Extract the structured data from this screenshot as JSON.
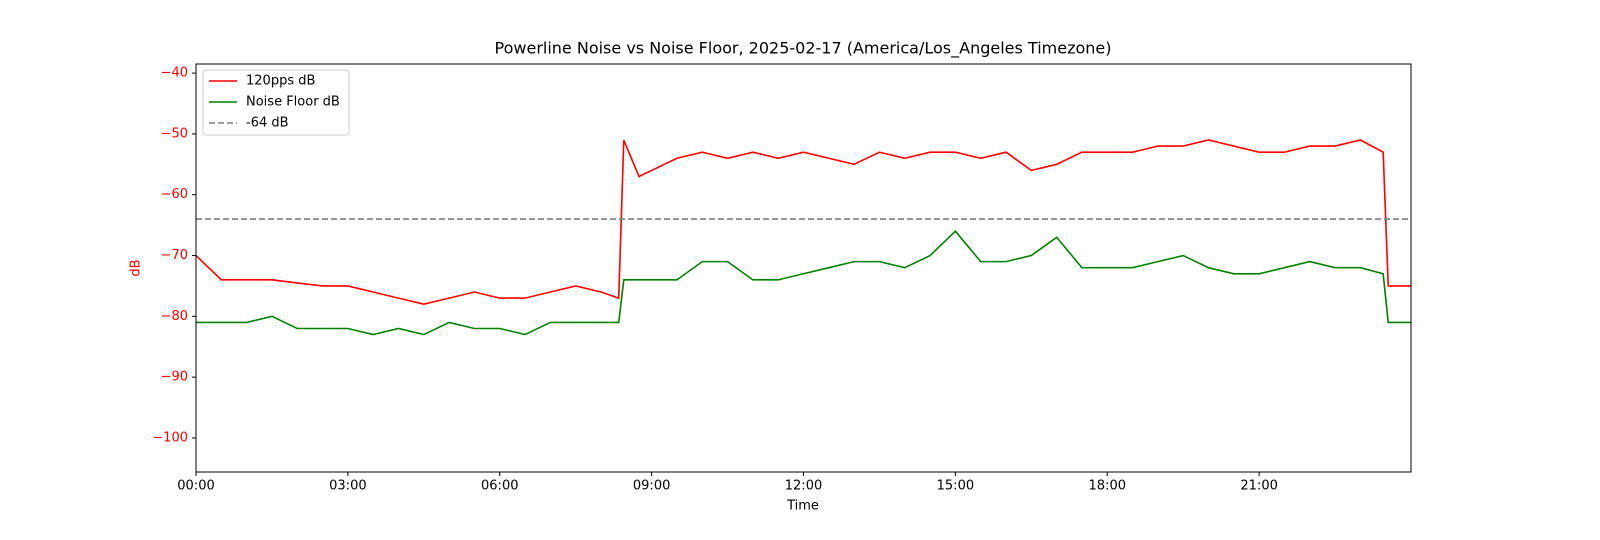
{
  "chart_data": {
    "type": "line",
    "title": "Powerline Noise vs Noise Floor, 2025-02-17 (America/Los_Angeles Timezone)",
    "x_label": "Time",
    "y_label": "dB",
    "y_axis_color": "#ff0000",
    "x": [
      0,
      0.5,
      1,
      1.5,
      2,
      2.5,
      3,
      3.5,
      4,
      4.5,
      5,
      5.5,
      6,
      6.5,
      7,
      7.5,
      8,
      8.35,
      8.45,
      8.75,
      9,
      9.5,
      10,
      10.5,
      11,
      11.5,
      12,
      12.5,
      13,
      13.5,
      14,
      14.5,
      15,
      15.5,
      16,
      16.5,
      17,
      17.5,
      18,
      18.5,
      19,
      19.5,
      20,
      20.5,
      21,
      21.5,
      22,
      22.5,
      23,
      23.45,
      23.55,
      24
    ],
    "series": [
      {
        "name": "120pps dB",
        "color": "#ff0000",
        "values": [
          -70,
          -74,
          -74,
          -74,
          -74.5,
          -75,
          -75,
          -76,
          -77,
          -78,
          -77,
          -76,
          -77,
          -77,
          -76,
          -75,
          -76,
          -77,
          -51,
          -57,
          -56,
          -54,
          -53,
          -54,
          -53,
          -54,
          -53,
          -54,
          -55,
          -53,
          -54,
          -53,
          -53,
          -54,
          -53,
          -56,
          -55,
          -53,
          -53,
          -53,
          -52,
          -52,
          -51,
          -52,
          -53,
          -53,
          -52,
          -52,
          -51,
          -53,
          -75,
          -75
        ]
      },
      {
        "name": "Noise Floor dB",
        "color": "#008000",
        "values": [
          -81,
          -81,
          -81,
          -80,
          -82,
          -82,
          -82,
          -83,
          -82,
          -83,
          -81,
          -82,
          -82,
          -83,
          -81,
          -81,
          -81,
          -81,
          -74,
          -74,
          -74,
          -74,
          -71,
          -71,
          -74,
          -74,
          -73,
          -72,
          -71,
          -71,
          -72,
          -70,
          -66,
          -71,
          -71,
          -70,
          -67,
          -72,
          -72,
          -72,
          -71,
          -70,
          -72,
          -73,
          -73,
          -72,
          -71,
          -72,
          -72,
          -73,
          -81,
          -81
        ]
      }
    ],
    "reference_line": {
      "name": "-64 dB",
      "value": -64,
      "color": "#808080"
    },
    "xlim": [
      0,
      24
    ],
    "xticks": [
      {
        "value": 0,
        "label": "00:00"
      },
      {
        "value": 3,
        "label": "03:00"
      },
      {
        "value": 6,
        "label": "06:00"
      },
      {
        "value": 9,
        "label": "09:00"
      },
      {
        "value": 12,
        "label": "12:00"
      },
      {
        "value": 15,
        "label": "15:00"
      },
      {
        "value": 18,
        "label": "18:00"
      },
      {
        "value": 21,
        "label": "21:00"
      }
    ],
    "ylim": [
      -105.6,
      -38.5
    ],
    "yticks": [
      {
        "value": -100,
        "label": "−100"
      },
      {
        "value": -90,
        "label": "−90"
      },
      {
        "value": -80,
        "label": "−80"
      },
      {
        "value": -70,
        "label": "−70"
      },
      {
        "value": -60,
        "label": "−60"
      },
      {
        "value": -50,
        "label": "−50"
      },
      {
        "value": -40,
        "label": "−40"
      }
    ],
    "legend": "upper left",
    "grid": false
  }
}
